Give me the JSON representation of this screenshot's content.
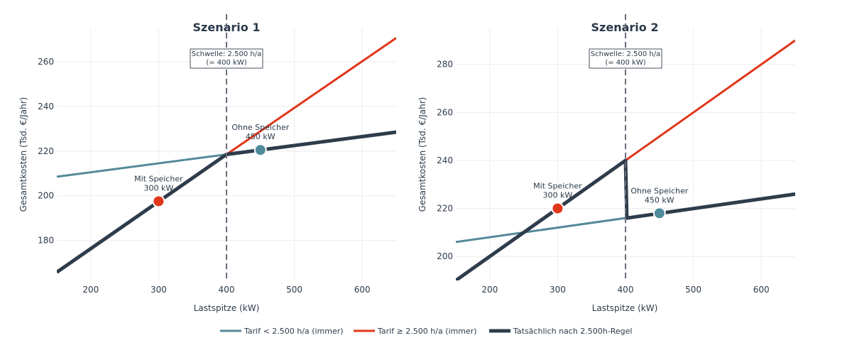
{
  "chart_data": [
    {
      "type": "line",
      "title": "Szenario 1",
      "xlabel": "Lastspitze (kW)",
      "ylabel": "Gesamtkosten (Tsd. €/Jahr)",
      "xlim": [
        150,
        650
      ],
      "ylim": [
        162,
        275
      ],
      "xticks": [
        200,
        300,
        400,
        500,
        600
      ],
      "yticks": [
        180,
        200,
        220,
        240,
        260
      ],
      "grid": true,
      "series": [
        {
          "name": "Tarif < 2.500 h/a (immer)",
          "color": "#55899a",
          "x": [
            150,
            650
          ],
          "y": [
            208.5,
            228.5
          ]
        },
        {
          "name": "Tarif ≥ 2.500 h/a (immer)",
          "color": "#e0361a",
          "x": [
            400,
            650
          ],
          "y": [
            218.5,
            270.7
          ]
        },
        {
          "name": "Tatsächlich nach 2.500h-Regel",
          "color": "#2e3c4b",
          "x": [
            150,
            400,
            650
          ],
          "y": [
            165.7,
            218.5,
            228.5
          ]
        }
      ],
      "threshold": {
        "x": 400,
        "label_lines": [
          "Schwelle: 2.500 h/a",
          "(= 400 kW)"
        ]
      },
      "points": [
        {
          "x": 300,
          "y": 197.5,
          "color": "#e0361a",
          "label_lines": [
            "Mit Speicher",
            "300 kW"
          ],
          "label_side": "above"
        },
        {
          "x": 450,
          "y": 220.5,
          "color": "#4e8a9c",
          "label_lines": [
            "Ohne Speicher",
            "450 kW"
          ],
          "label_side": "above"
        }
      ]
    },
    {
      "type": "line",
      "title": "Szenario 2",
      "xlabel": "Lastspitze (kW)",
      "ylabel": "Gesamtkosten (Tsd. €/Jahr)",
      "xlim": [
        150,
        650
      ],
      "ylim": [
        190,
        295
      ],
      "xticks": [
        200,
        300,
        400,
        500,
        600
      ],
      "yticks": [
        200,
        220,
        240,
        260,
        280
      ],
      "grid": true,
      "series": [
        {
          "name": "Tarif < 2.500 h/a (immer)",
          "color": "#55899a",
          "x": [
            150,
            650
          ],
          "y": [
            206,
            226
          ]
        },
        {
          "name": "Tarif ≥ 2.500 h/a (immer)",
          "color": "#e0361a",
          "x": [
            400,
            650
          ],
          "y": [
            240,
            290
          ]
        },
        {
          "name": "Tatsächlich nach 2.500h-Regel",
          "color": "#2e3c4b",
          "x": [
            150,
            400,
            402,
            650
          ],
          "y": [
            190,
            240,
            216,
            226
          ]
        }
      ],
      "threshold": {
        "x": 400,
        "label_lines": [
          "Schwelle: 2.500 h/a",
          "(= 400 kW)"
        ]
      },
      "points": [
        {
          "x": 300,
          "y": 220,
          "color": "#e0361a",
          "label_lines": [
            "Mit Speicher",
            "300 kW"
          ],
          "label_side": "above"
        },
        {
          "x": 450,
          "y": 218,
          "color": "#4e8a9c",
          "label_lines": [
            "Ohne Speicher",
            "450 kW"
          ],
          "label_side": "above"
        }
      ]
    }
  ],
  "legend": {
    "placement": "bottom-center",
    "items": [
      {
        "label": "Tarif < 2.500 h/a (immer)",
        "color": "#55899a",
        "width": "medium"
      },
      {
        "label": "Tarif ≥ 2.500 h/a (immer)",
        "color": "#e0361a",
        "width": "medium"
      },
      {
        "label": "Tatsächlich nach 2.500h-Regel",
        "color": "#2e3c4b",
        "width": "thick"
      }
    ]
  }
}
